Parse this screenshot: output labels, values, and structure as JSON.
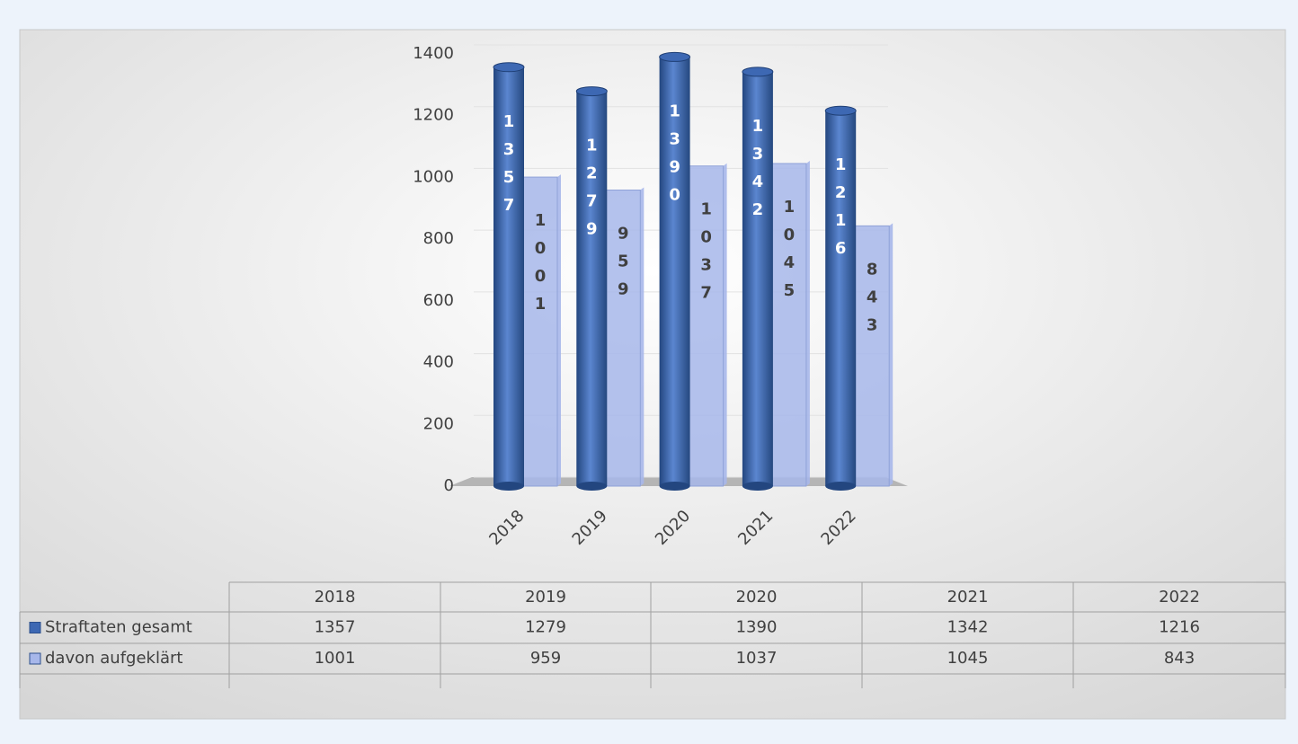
{
  "chart_data": {
    "type": "bar",
    "categories": [
      "2018",
      "2019",
      "2020",
      "2021",
      "2022"
    ],
    "series": [
      {
        "name": "Straftaten gesamt",
        "color": "#3d68b3",
        "values": [
          1357,
          1279,
          1390,
          1342,
          1216
        ]
      },
      {
        "name": "davon aufgeklärt",
        "color": "#a7b7ea",
        "values": [
          1001,
          959,
          1037,
          1045,
          843
        ]
      }
    ],
    "ylim": [
      0,
      1400
    ],
    "yticks": [
      0,
      200,
      400,
      600,
      800,
      1000,
      1200,
      1400
    ],
    "grid": true
  }
}
